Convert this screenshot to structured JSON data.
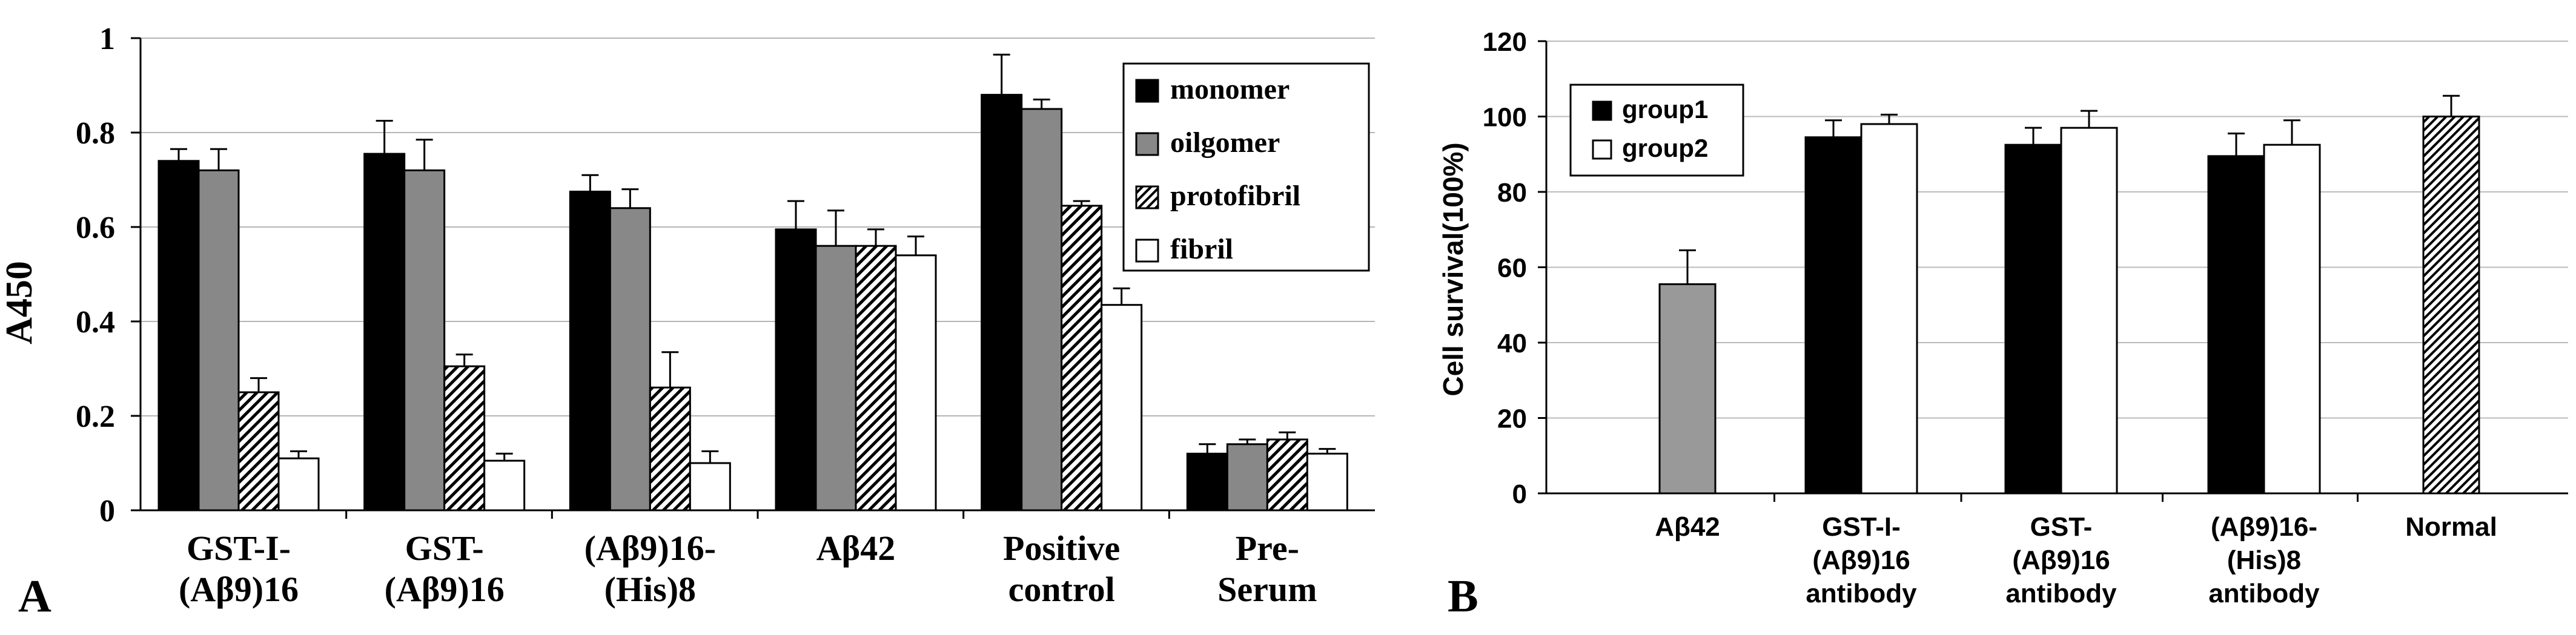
{
  "chart_data": [
    {
      "type": "bar",
      "panel_label": "A",
      "ylabel": "A450",
      "ylim": [
        0,
        1
      ],
      "yticks": [
        "0",
        "0.2",
        "0.4",
        "0.6",
        "0.8",
        "1"
      ],
      "grid": true,
      "legend_position": "top-right",
      "categories": [
        [
          "GST-I-",
          "(Aβ9)16"
        ],
        [
          "GST-",
          "(Aβ9)16"
        ],
        [
          "(Aβ9)16-",
          "(His)8"
        ],
        [
          "Aβ42"
        ],
        [
          "Positive",
          "control"
        ],
        [
          "Pre-",
          "Serum"
        ]
      ],
      "series": [
        {
          "name": "monomer",
          "fill": "#000000",
          "pattern": "solid",
          "values": [
            0.74,
            0.755,
            0.675,
            0.595,
            0.88,
            0.12
          ],
          "errors": [
            0.025,
            0.07,
            0.035,
            0.06,
            0.085,
            0.02
          ]
        },
        {
          "name": "oilgomer",
          "fill": "#888888",
          "pattern": "solid",
          "values": [
            0.72,
            0.72,
            0.64,
            0.56,
            0.85,
            0.14
          ],
          "errors": [
            0.045,
            0.065,
            0.04,
            0.075,
            0.02,
            0.01
          ]
        },
        {
          "name": "protofibril",
          "fill": "#ffffff",
          "pattern": "hatch",
          "values": [
            0.25,
            0.305,
            0.26,
            0.56,
            0.645,
            0.15
          ],
          "errors": [
            0.03,
            0.025,
            0.075,
            0.035,
            0.01,
            0.015
          ]
        },
        {
          "name": "fibril",
          "fill": "#ffffff",
          "pattern": "solid",
          "values": [
            0.11,
            0.105,
            0.1,
            0.54,
            0.435,
            0.12
          ],
          "errors": [
            0.015,
            0.015,
            0.025,
            0.04,
            0.035,
            0.01
          ]
        }
      ]
    },
    {
      "type": "bar",
      "panel_label": "B",
      "ylabel": "Cell survival(100%)",
      "ylim": [
        0,
        120
      ],
      "yticks": [
        "0",
        "20",
        "40",
        "60",
        "80",
        "100",
        "120"
      ],
      "grid": true,
      "legend_position": "top-left",
      "categories": [
        [
          "Aβ42"
        ],
        [
          "GST-I-",
          "(Aβ9)16",
          "antibody"
        ],
        [
          "GST-",
          "(Aβ9)16",
          "antibody"
        ],
        [
          "(Aβ9)16-",
          "(His)8",
          "antibody"
        ],
        [
          "Normal"
        ]
      ],
      "legend": [
        {
          "name": "group1",
          "fill": "#000000"
        },
        {
          "name": "group2",
          "fill": "#ffffff"
        }
      ],
      "bars": [
        {
          "category": 0,
          "series": "single",
          "value": 55.5,
          "error": 9,
          "fill": "#999999",
          "pattern": "solid"
        },
        {
          "category": 1,
          "series": "group1",
          "value": 94.5,
          "error": 4.5,
          "fill": "#000000",
          "pattern": "solid"
        },
        {
          "category": 1,
          "series": "group2",
          "value": 98,
          "error": 2.5,
          "fill": "#ffffff",
          "pattern": "solid"
        },
        {
          "category": 2,
          "series": "group1",
          "value": 92.5,
          "error": 4.5,
          "fill": "#000000",
          "pattern": "solid"
        },
        {
          "category": 2,
          "series": "group2",
          "value": 97,
          "error": 4.5,
          "fill": "#ffffff",
          "pattern": "solid"
        },
        {
          "category": 3,
          "series": "group1",
          "value": 89.5,
          "error": 6,
          "fill": "#000000",
          "pattern": "solid"
        },
        {
          "category": 3,
          "series": "group2",
          "value": 92.5,
          "error": 6.5,
          "fill": "#ffffff",
          "pattern": "solid"
        },
        {
          "category": 4,
          "series": "single",
          "value": 100,
          "error": 5.5,
          "fill": "#ffffff",
          "pattern": "hatch"
        }
      ]
    }
  ]
}
